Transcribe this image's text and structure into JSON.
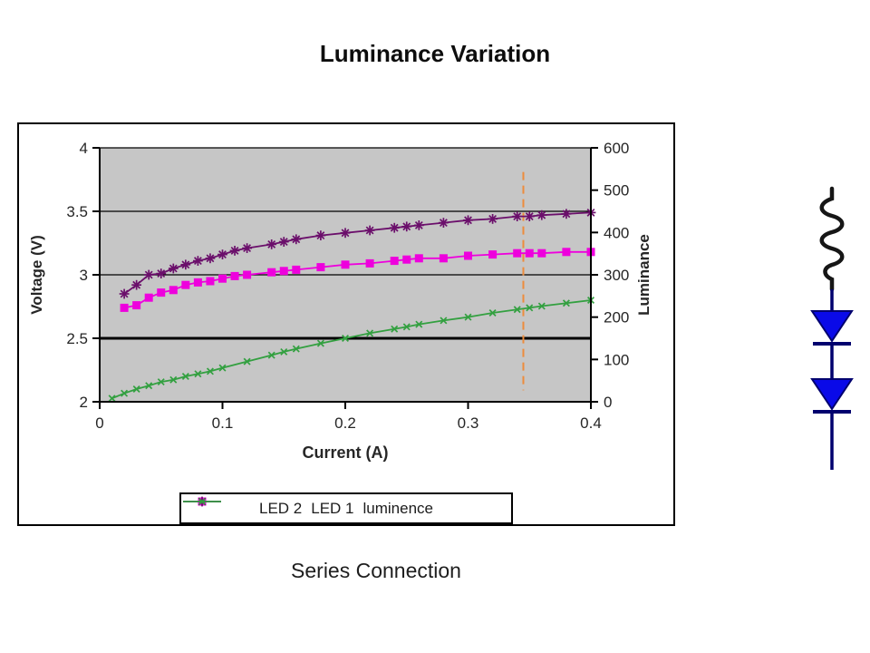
{
  "page": {
    "title": "Luminance Variation",
    "caption": "Series Connection",
    "background": "#FFFFFF"
  },
  "chart_data": {
    "type": "line",
    "title": "Luminance Variation",
    "xlabel": "Current (A)",
    "ylabel_left": "Voltage (V)",
    "ylabel_right": "Luminance",
    "xlim": [
      0,
      0.4
    ],
    "ylim_left": [
      2,
      4
    ],
    "ylim_right": [
      0,
      600
    ],
    "x_ticks": [
      {
        "label": "0",
        "value": 0
      },
      {
        "label": "0.1",
        "value": 0.1
      },
      {
        "label": "0.2",
        "value": 0.2
      },
      {
        "label": "0.3",
        "value": 0.3
      },
      {
        "label": "0.4",
        "value": 0.4
      }
    ],
    "y_ticks_left": [
      {
        "label": "4",
        "value": 4
      },
      {
        "label": "3.5",
        "value": 3.5
      },
      {
        "label": "3",
        "value": 3
      },
      {
        "label": "2.5",
        "value": 2.5
      },
      {
        "label": "2",
        "value": 2
      }
    ],
    "y_ticks_right": [
      {
        "label": "600",
        "value": 600
      },
      {
        "label": "500",
        "value": 500
      },
      {
        "label": "400",
        "value": 400
      },
      {
        "label": "300",
        "value": 300
      },
      {
        "label": "200",
        "value": 200
      },
      {
        "label": "100",
        "value": 100
      },
      {
        "label": "0",
        "value": 0
      }
    ],
    "gridlines": [
      {
        "value": 4,
        "thick": false
      },
      {
        "value": 3.5,
        "thick": false
      },
      {
        "value": 3,
        "thick": false
      },
      {
        "value": 2.5,
        "thick": true
      }
    ],
    "plot_bg": "#C6C6C6",
    "legend_position": "bottom",
    "annotation": {
      "type": "vline",
      "x": 0.345,
      "v_from": 2.09,
      "v_to": 3.81,
      "color": "#ED8C3C",
      "style": "dashed"
    },
    "series": [
      {
        "name": "LED 2",
        "axis": "left",
        "color": "#EE00DD",
        "marker": "square",
        "x": [
          0.02,
          0.03,
          0.04,
          0.05,
          0.06,
          0.07,
          0.08,
          0.09,
          0.1,
          0.11,
          0.12,
          0.14,
          0.15,
          0.16,
          0.18,
          0.2,
          0.22,
          0.24,
          0.25,
          0.26,
          0.28,
          0.3,
          0.32,
          0.34,
          0.35,
          0.36,
          0.38,
          0.4
        ],
        "y": [
          2.74,
          2.76,
          2.82,
          2.86,
          2.88,
          2.92,
          2.94,
          2.95,
          2.97,
          2.99,
          3.0,
          3.02,
          3.03,
          3.04,
          3.06,
          3.08,
          3.09,
          3.11,
          3.12,
          3.13,
          3.13,
          3.15,
          3.16,
          3.17,
          3.17,
          3.17,
          3.18,
          3.18
        ]
      },
      {
        "name": "LED 1",
        "axis": "left",
        "color": "#6B0F6B",
        "marker": "asterisk",
        "x": [
          0.02,
          0.03,
          0.04,
          0.05,
          0.06,
          0.07,
          0.08,
          0.09,
          0.1,
          0.11,
          0.12,
          0.14,
          0.15,
          0.16,
          0.18,
          0.2,
          0.22,
          0.24,
          0.25,
          0.26,
          0.28,
          0.3,
          0.32,
          0.34,
          0.35,
          0.36,
          0.38,
          0.4
        ],
        "y": [
          2.85,
          2.92,
          3.0,
          3.01,
          3.05,
          3.08,
          3.11,
          3.13,
          3.16,
          3.19,
          3.21,
          3.24,
          3.26,
          3.28,
          3.31,
          3.33,
          3.35,
          3.37,
          3.38,
          3.39,
          3.41,
          3.43,
          3.44,
          3.46,
          3.46,
          3.47,
          3.48,
          3.49
        ]
      },
      {
        "name": "luminence",
        "axis": "right",
        "color": "#33A040",
        "marker": "x",
        "x": [
          0.01,
          0.02,
          0.03,
          0.04,
          0.05,
          0.06,
          0.07,
          0.08,
          0.09,
          0.1,
          0.12,
          0.14,
          0.15,
          0.16,
          0.18,
          0.2,
          0.22,
          0.24,
          0.25,
          0.26,
          0.28,
          0.3,
          0.32,
          0.34,
          0.35,
          0.36,
          0.38,
          0.4
        ],
        "y": [
          8,
          20,
          30,
          38,
          47,
          52,
          60,
          66,
          72,
          80,
          95,
          110,
          118,
          125,
          138,
          150,
          162,
          172,
          177,
          183,
          192,
          200,
          210,
          218,
          222,
          226,
          233,
          240
        ]
      }
    ]
  },
  "circuit": {
    "components": [
      "resistor",
      "diode",
      "diode"
    ],
    "connection": "series",
    "resistor_color": "#161616",
    "wire_color": "#00006E",
    "diode_fill": "#0A0AE8"
  }
}
